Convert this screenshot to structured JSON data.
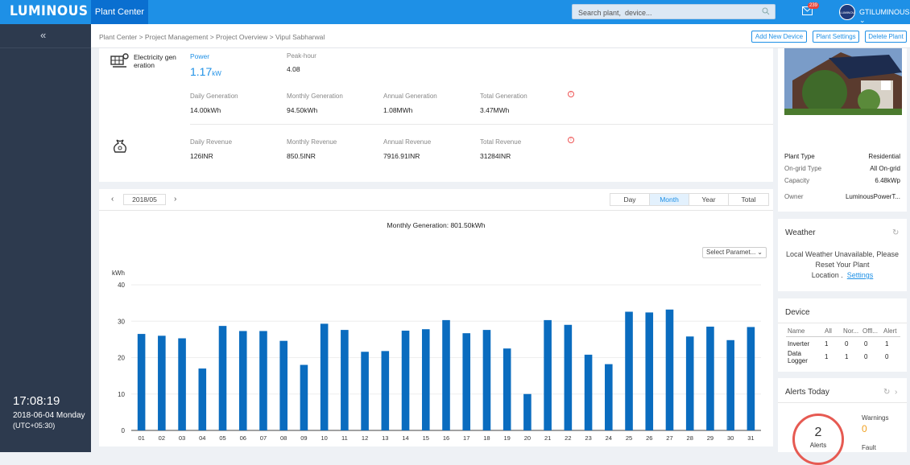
{
  "header": {
    "logo": "LUMINOUS",
    "nav_tab": "Plant Center",
    "search_placeholder": "Search plant,  device...",
    "mail_count": "239",
    "avatar_text": "LUMINOUS",
    "user": "GTILUMINOUS"
  },
  "sidebar": {
    "collapse": "«",
    "time": "17:08:19",
    "date": "2018-06-04  Monday",
    "tz": "(UTC+05:30)"
  },
  "breadcrumb": "Plant Center > Project Management > Project Overview > Vipul Sabharwal",
  "actions": [
    "Add New Device",
    "Plant Settings",
    "Delete Plant"
  ],
  "generation": {
    "title": "Electricity gen eration",
    "power_label": "Power",
    "power_value": "1.17",
    "power_unit": "kW",
    "peak_label": "Peak-hour",
    "peak_value": "4.08",
    "daily_label": "Daily Generation",
    "daily_value": "14.00kWh",
    "monthly_label": "Monthly Generation",
    "monthly_value": "94.50kWh",
    "annual_label": "Annual Generation",
    "annual_value": "1.08MWh",
    "total_label": "Total Generation",
    "total_value": "3.47MWh"
  },
  "revenue": {
    "daily_label": "Daily Revenue",
    "daily_value": "126INR",
    "monthly_label": "Monthly Revenue",
    "monthly_value": "850.5INR",
    "annual_label": "Annual Revenue",
    "annual_value": "7916.91INR",
    "total_label": "Total Revenue",
    "total_value": "31284INR"
  },
  "period": {
    "value": "2018/05",
    "tabs": [
      "Day",
      "Month",
      "Year",
      "Total"
    ],
    "active": "Month"
  },
  "monthly_generation": "Monthly Generation: 801.50kWh",
  "select_param": "Select Paramet...",
  "chart_data": {
    "type": "bar",
    "ylabel": "kWh",
    "ylim": [
      0,
      40
    ],
    "yticks": [
      "0",
      "10",
      "20",
      "30",
      "40"
    ],
    "categories": [
      "01",
      "02",
      "03",
      "04",
      "05",
      "06",
      "07",
      "08",
      "09",
      "10",
      "11",
      "12",
      "13",
      "14",
      "15",
      "16",
      "17",
      "18",
      "19",
      "20",
      "21",
      "22",
      "23",
      "24",
      "25",
      "26",
      "27",
      "28",
      "29",
      "30",
      "31"
    ],
    "values": [
      26.5,
      26,
      25.3,
      17,
      28.7,
      27.3,
      27.3,
      24.6,
      18,
      29.3,
      27.6,
      21.6,
      21.8,
      27.4,
      27.8,
      30.3,
      26.7,
      27.6,
      22.5,
      10,
      30.3,
      29,
      20.8,
      18.2,
      32.6,
      32.4,
      33.2,
      25.8,
      28.5,
      24.8,
      28.4
    ],
    "bar_color": "#0a6cbf",
    "grid": true
  },
  "plant": {
    "type_label": "Plant Type",
    "type_value": "Residential",
    "ongrid_label": "On-grid Type",
    "ongrid_value": "All On-grid",
    "capacity_label": "Capacity",
    "capacity_value": "6.48kWp",
    "owner_label": "Owner",
    "owner_value": "LuminousPowerT..."
  },
  "weather": {
    "title": "Weather",
    "line1": "Local Weather Unavailable, Please",
    "line2": "Reset Your Plant",
    "line3": "Location .",
    "link": "Settings"
  },
  "device": {
    "title": "Device",
    "headers": [
      "Name",
      "All",
      "Nor...",
      "Offl...",
      "Alert"
    ],
    "rows": [
      {
        "name": "Inverter",
        "all": "1",
        "normal": "0",
        "offline": "0",
        "alert": "1"
      },
      {
        "name": "Data Logger",
        "all": "1",
        "normal": "1",
        "offline": "0",
        "alert": "0"
      }
    ]
  },
  "alerts": {
    "title": "Alerts Today",
    "count": "2",
    "label": "Alerts",
    "warnings_label": "Warnings",
    "warnings_value": "0",
    "fault_label": "Fault"
  }
}
